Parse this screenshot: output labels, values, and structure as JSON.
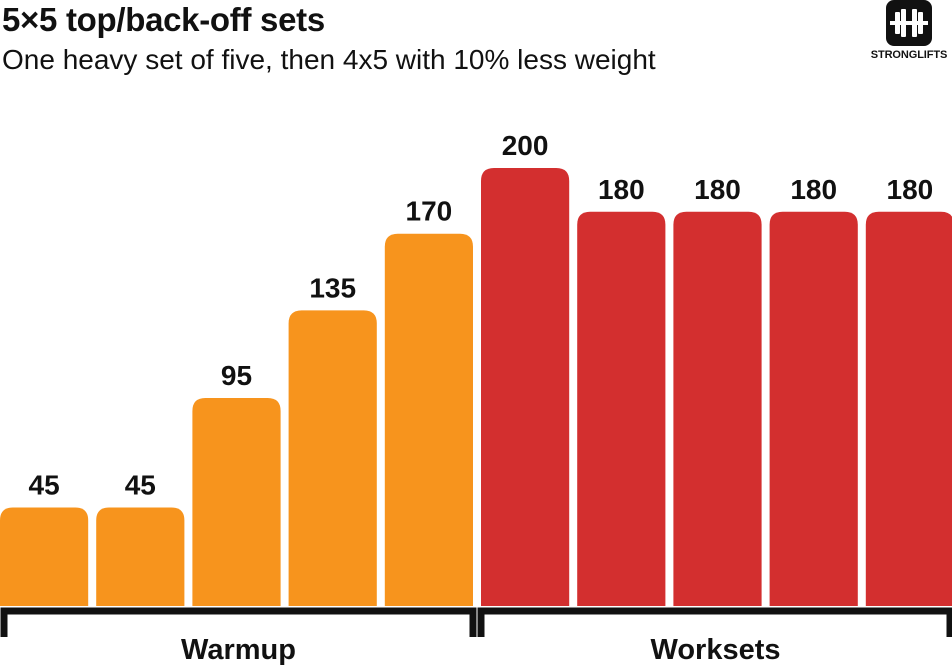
{
  "header": {
    "title": "5×5 top/back-off sets",
    "subtitle": "One heavy set of five, then 4x5 with 10% less weight"
  },
  "logo": {
    "icon": "barbell-icon",
    "text": "STRONGLIFTS"
  },
  "colors": {
    "warmup": "#F7941D",
    "workset": "#D32F2F",
    "text": "#111111"
  },
  "chart_data": {
    "type": "bar",
    "title": "5×5 top/back-off sets",
    "subtitle": "One heavy set of five, then 4x5 with 10% less weight",
    "categories": [
      "",
      "",
      "",
      "",
      "",
      "",
      "",
      "",
      "",
      ""
    ],
    "values": [
      45,
      45,
      95,
      135,
      170,
      200,
      180,
      180,
      180,
      180
    ],
    "data_labels": [
      "45",
      "45",
      "95",
      "135",
      "170",
      "200",
      "180",
      "180",
      "180",
      "180"
    ],
    "groups": [
      {
        "name": "Warmup",
        "start": 0,
        "end": 4,
        "color": "#F7941D"
      },
      {
        "name": "Worksets",
        "start": 5,
        "end": 9,
        "color": "#D32F2F"
      }
    ],
    "ylim": [
      0,
      200
    ],
    "grid": false,
    "legend": "none"
  }
}
